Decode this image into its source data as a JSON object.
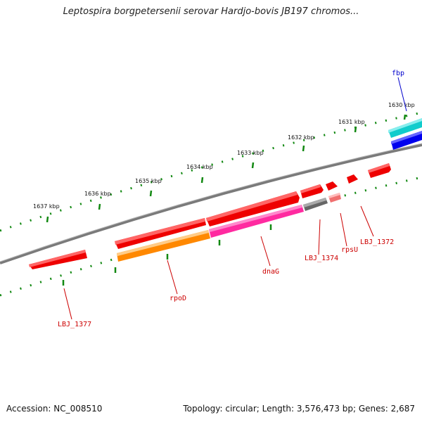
{
  "title": "Leptospira borgpetersenii serovar Hardjo-bovis JB197 chromos...",
  "footer": {
    "accession": "Accession: NC_008510",
    "topology": "Topology: circular; Length: 3,576,473 bp; Genes: 2,687"
  },
  "kbp_labels": [
    "1630 kbp",
    "1631 kbp",
    "1632 kbp",
    "1633 kbp",
    "1634 kbp",
    "1635 kbp",
    "1636 kbp",
    "1637 kbp"
  ],
  "genes": [
    {
      "name": "fbp",
      "color": "#0000cc"
    },
    {
      "name": "LBJ_1372",
      "color": "#cc0000"
    },
    {
      "name": "rpsU",
      "color": "#cc0000"
    },
    {
      "name": "LBJ_1374",
      "color": "#cc0000"
    },
    {
      "name": "dnaG",
      "color": "#cc0000"
    },
    {
      "name": "rpoD",
      "color": "#cc0000"
    },
    {
      "name": "LBJ_1377",
      "color": "#cc0000"
    }
  ],
  "colors": {
    "backbone": "#808080",
    "tick": "#118811",
    "red_gene": "#ee0000",
    "orange_gene": "#ff8800",
    "pink_gene": "#ff2aa0",
    "gray_gene": "#666666",
    "lightred_gene": "#f07070",
    "cyan_gene": "#11cccc",
    "blue_gene": "#0000ee"
  }
}
